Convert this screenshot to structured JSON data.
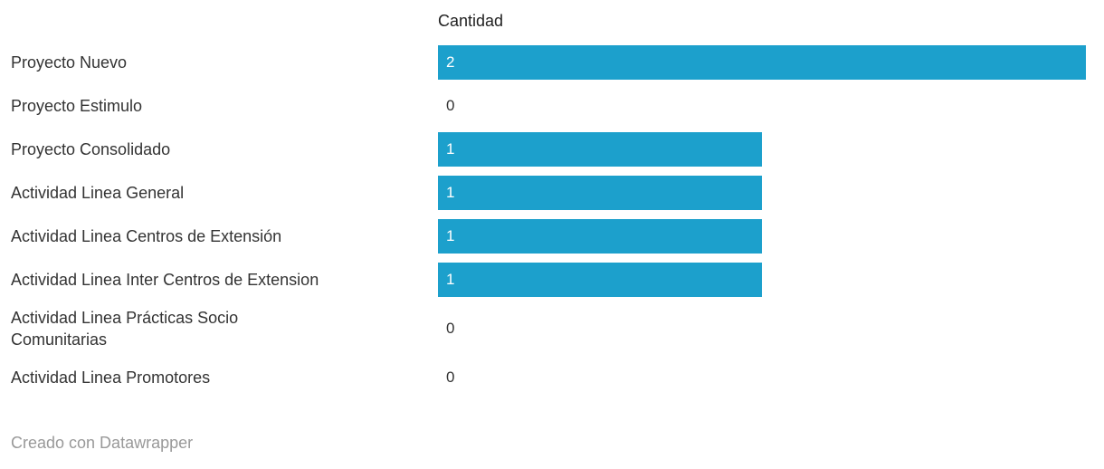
{
  "chart_data": {
    "type": "bar",
    "orientation": "horizontal",
    "value_column_header": "Cantidad",
    "categories": [
      "Proyecto Nuevo",
      "Proyecto Estimulo",
      "Proyecto Consolidado",
      "Actividad Linea General",
      "Actividad Linea Centros de Extensión",
      "Actividad Linea Inter Centros de Extension",
      "Actividad Linea Prácticas Socio\nComunitarias",
      "Actividad Linea Promotores"
    ],
    "values": [
      2,
      0,
      1,
      1,
      1,
      1,
      0,
      0
    ],
    "xlim": [
      0,
      2
    ],
    "bar_color": "#1ca0cc",
    "value_label_inside_color": "#ffffff",
    "value_label_zero_color": "#333333",
    "grid": false,
    "legend": false
  },
  "footer": {
    "credit": "Creado con Datawrapper"
  }
}
